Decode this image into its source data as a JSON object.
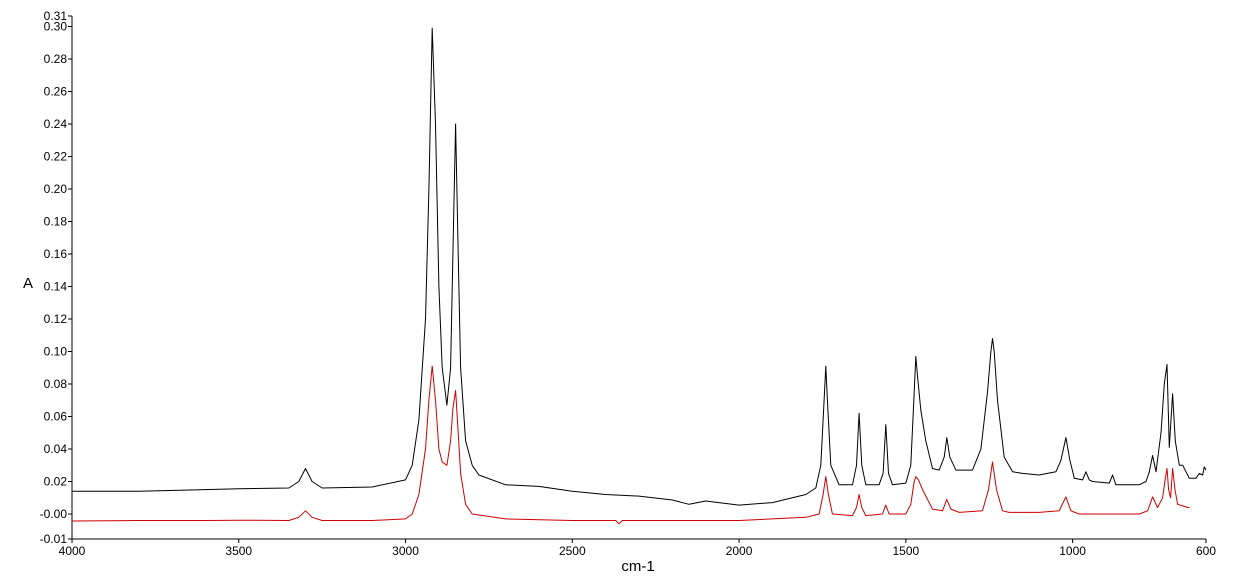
{
  "chart_data": {
    "type": "line",
    "title": "",
    "xlabel": "cm-1",
    "ylabel": "A",
    "xlim": [
      4000,
      600
    ],
    "x_reversed": true,
    "ylim": [
      -0.01,
      0.31
    ],
    "grid": false,
    "x_ticks": [
      4000,
      3500,
      3000,
      2500,
      2000,
      1500,
      1000,
      600
    ],
    "x_tick_labels": [
      "4000",
      "3500",
      "3000",
      "2500",
      "2000",
      "1500",
      "1000",
      "600"
    ],
    "y_ticks": [
      0.0,
      0.02,
      0.04,
      0.06,
      0.08,
      0.1,
      0.12,
      0.14,
      0.16,
      0.18,
      0.2,
      0.22,
      0.24,
      0.26,
      0.28,
      0.3
    ],
    "y_tick_labels": [
      "-0.00",
      "0.02",
      "0.04",
      "0.06",
      "0.08",
      "0.10",
      "0.12",
      "0.14",
      "0.16",
      "0.18",
      "0.20",
      "0.22",
      "0.24",
      "0.26",
      "0.28",
      "0.30"
    ],
    "y_end_labels": {
      "min": "-0.01",
      "max": "0.31"
    },
    "series": [
      {
        "color": "#000000",
        "x": [
          4000,
          3800,
          3600,
          3500,
          3350,
          3320,
          3300,
          3280,
          3250,
          3100,
          3000,
          2980,
          2960,
          2940,
          2930,
          2920,
          2910,
          2900,
          2890,
          2876,
          2865,
          2858,
          2850,
          2842,
          2835,
          2820,
          2800,
          2780,
          2700,
          2600,
          2500,
          2400,
          2300,
          2200,
          2150,
          2100,
          2000,
          1900,
          1800,
          1770,
          1755,
          1745,
          1740,
          1735,
          1725,
          1700,
          1660,
          1648,
          1640,
          1632,
          1620,
          1580,
          1568,
          1560,
          1552,
          1540,
          1500,
          1485,
          1475,
          1470,
          1465,
          1455,
          1440,
          1420,
          1400,
          1385,
          1377,
          1368,
          1350,
          1300,
          1275,
          1255,
          1245,
          1240,
          1235,
          1225,
          1205,
          1180,
          1150,
          1100,
          1050,
          1035,
          1020,
          1008,
          995,
          970,
          960,
          950,
          940,
          890,
          880,
          870,
          800,
          780,
          770,
          760,
          750,
          735,
          725,
          717,
          710,
          700,
          692,
          680,
          670,
          650,
          630,
          620,
          610,
          605,
          600
        ],
        "y": [
          0.014,
          0.014,
          0.015,
          0.0155,
          0.016,
          0.02,
          0.028,
          0.02,
          0.016,
          0.0166,
          0.021,
          0.03,
          0.058,
          0.12,
          0.2,
          0.299,
          0.24,
          0.14,
          0.09,
          0.067,
          0.09,
          0.16,
          0.24,
          0.16,
          0.09,
          0.045,
          0.03,
          0.024,
          0.018,
          0.017,
          0.014,
          0.012,
          0.011,
          0.0086,
          0.006,
          0.008,
          0.0055,
          0.007,
          0.012,
          0.016,
          0.03,
          0.07,
          0.091,
          0.07,
          0.03,
          0.018,
          0.018,
          0.03,
          0.062,
          0.03,
          0.018,
          0.018,
          0.025,
          0.055,
          0.025,
          0.018,
          0.019,
          0.03,
          0.075,
          0.097,
          0.085,
          0.064,
          0.045,
          0.028,
          0.027,
          0.035,
          0.047,
          0.035,
          0.027,
          0.027,
          0.04,
          0.075,
          0.1,
          0.108,
          0.1,
          0.07,
          0.035,
          0.026,
          0.025,
          0.024,
          0.026,
          0.033,
          0.047,
          0.033,
          0.022,
          0.021,
          0.026,
          0.021,
          0.02,
          0.019,
          0.024,
          0.018,
          0.018,
          0.02,
          0.026,
          0.036,
          0.026,
          0.05,
          0.08,
          0.092,
          0.041,
          0.074,
          0.045,
          0.03,
          0.03,
          0.022,
          0.022,
          0.025,
          0.024,
          0.029,
          0.027
        ]
      },
      {
        "color": "#cc0000",
        "x": [
          4000,
          3800,
          3600,
          3500,
          3350,
          3320,
          3300,
          3280,
          3250,
          3100,
          3000,
          2980,
          2960,
          2940,
          2930,
          2920,
          2910,
          2900,
          2890,
          2876,
          2865,
          2858,
          2850,
          2842,
          2835,
          2820,
          2800,
          2700,
          2500,
          2370,
          2360,
          2350,
          2200,
          2000,
          1800,
          1760,
          1748,
          1740,
          1732,
          1720,
          1660,
          1648,
          1640,
          1632,
          1620,
          1570,
          1560,
          1550,
          1500,
          1485,
          1475,
          1470,
          1462,
          1450,
          1420,
          1390,
          1377,
          1365,
          1340,
          1270,
          1252,
          1240,
          1228,
          1210,
          1190,
          1100,
          1040,
          1020,
          1005,
          980,
          800,
          775,
          760,
          745,
          730,
          722,
          717,
          712,
          706,
          700,
          693,
          685,
          670,
          655,
          650
        ],
        "y": [
          -0.0043,
          -0.004,
          -0.004,
          -0.0038,
          -0.004,
          -0.002,
          0.002,
          -0.002,
          -0.004,
          -0.004,
          -0.003,
          0.0,
          0.012,
          0.04,
          0.07,
          0.091,
          0.07,
          0.04,
          0.032,
          0.03,
          0.045,
          0.065,
          0.076,
          0.05,
          0.025,
          0.006,
          0.0,
          -0.003,
          -0.004,
          -0.004,
          -0.006,
          -0.004,
          -0.004,
          -0.004,
          -0.002,
          0.0,
          0.012,
          0.023,
          0.012,
          0.0,
          -0.001,
          0.004,
          0.012,
          0.004,
          -0.001,
          0.0,
          0.0055,
          0.0,
          0.0,
          0.006,
          0.02,
          0.023,
          0.021,
          0.015,
          0.003,
          0.002,
          0.009,
          0.003,
          0.001,
          0.002,
          0.015,
          0.032,
          0.015,
          0.002,
          0.001,
          0.001,
          0.002,
          0.0105,
          0.002,
          0.0,
          0.0,
          0.002,
          0.0105,
          0.004,
          0.01,
          0.022,
          0.028,
          0.015,
          0.01,
          0.028,
          0.015,
          0.006,
          0.005,
          0.004,
          0.004
        ]
      }
    ]
  }
}
